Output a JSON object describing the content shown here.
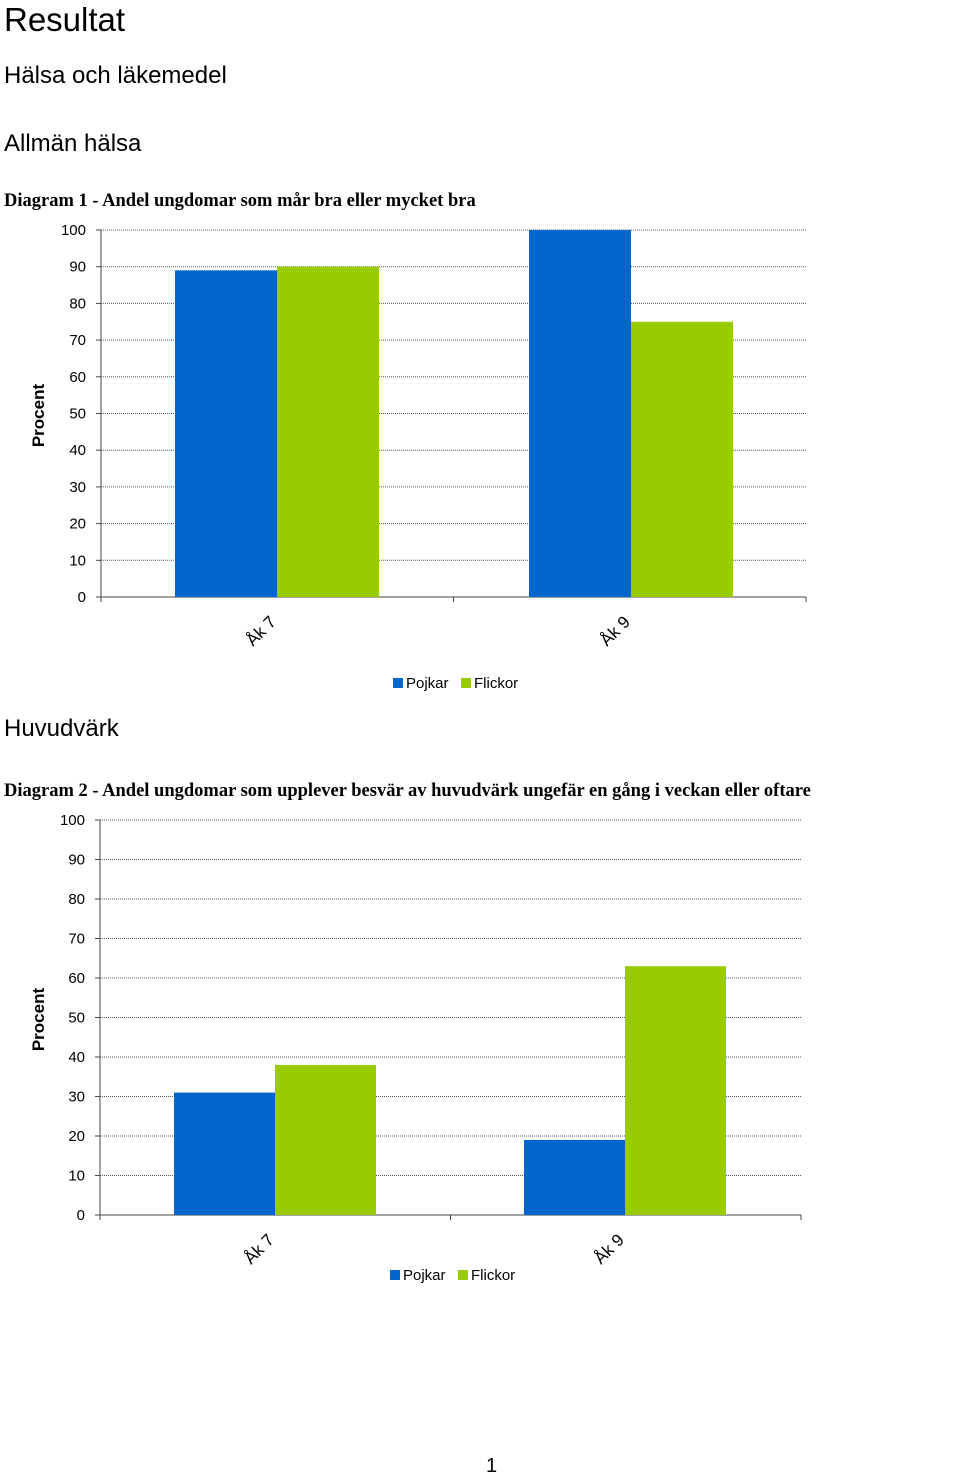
{
  "page": {
    "title": "Resultat",
    "section": "Hälsa och läkemedel",
    "page_number": "1"
  },
  "chart1": {
    "heading": "Allmän hälsa",
    "caption": "Diagram 1 - Andel ungdomar som mår bra eller mycket bra"
  },
  "chart2": {
    "heading": "Huvudvärk",
    "caption": "Diagram 2 - Andel ungdomar som upplever besvär av huvudvärk ungefär en gång i veckan eller oftare"
  },
  "colors": {
    "pojkar": "#0066CC",
    "flickor": "#99CC00"
  },
  "chart_data": [
    {
      "type": "bar",
      "title": "",
      "categories": [
        "Åk 7",
        "Åk 9"
      ],
      "series": [
        {
          "name": "Pojkar",
          "values": [
            89,
            100
          ]
        },
        {
          "name": "Flickor",
          "values": [
            90,
            75
          ]
        }
      ],
      "ylabel": "Procent",
      "ylim": [
        0,
        100
      ],
      "yticks": [
        "0",
        "10",
        "20",
        "30",
        "40",
        "50",
        "60",
        "70",
        "80",
        "90",
        "100"
      ],
      "grid": true,
      "legend": "bottom"
    },
    {
      "type": "bar",
      "title": "",
      "categories": [
        "Åk 7",
        "Åk 9"
      ],
      "series": [
        {
          "name": "Pojkar",
          "values": [
            31,
            19
          ]
        },
        {
          "name": "Flickor",
          "values": [
            38,
            63
          ]
        }
      ],
      "ylabel": "Procent",
      "ylim": [
        0,
        100
      ],
      "yticks": [
        "0",
        "10",
        "20",
        "30",
        "40",
        "50",
        "60",
        "70",
        "80",
        "90",
        "100"
      ],
      "grid": true,
      "legend": "bottom"
    }
  ]
}
